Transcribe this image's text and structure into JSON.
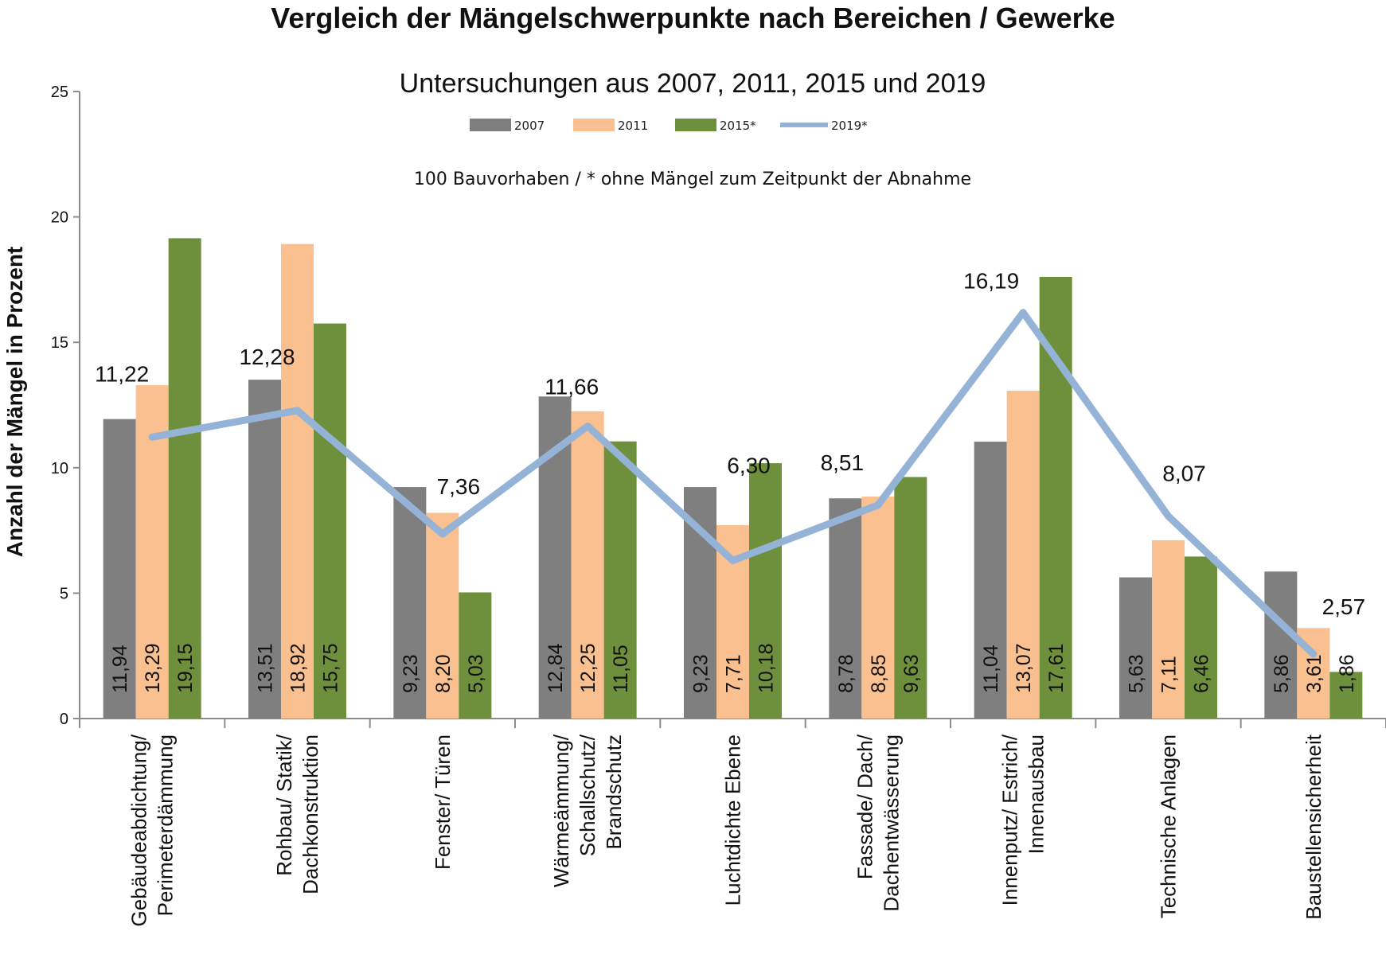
{
  "chart_data": {
    "type": "bar",
    "title": "Vergleich der Mängelschwerpunkte nach Bereichen / Gewerke",
    "subtitle": "Untersuchungen aus 2007, 2011, 2015 und 2019",
    "note": "100 Bauvorhaben / * ohne Mängel zum Zeitpunkt der Abnahme",
    "ylabel": "Anzahl der Mängel in Prozent",
    "xlabel": "",
    "ylim": [
      0,
      25
    ],
    "yticks": [
      "0",
      "5",
      "10",
      "15",
      "20",
      "25"
    ],
    "legend_position": "top",
    "categories": [
      [
        "Gebäudeabdichtung/",
        "Perimeterdämmung"
      ],
      [
        "Rohbau/ Statik/",
        "Dachkonstruktion"
      ],
      [
        "Fenster/ Türen"
      ],
      [
        "Wärmeämmung/",
        "Schallschutz/",
        "Brandschutz"
      ],
      [
        "Luchtdichte Ebene"
      ],
      [
        "Fassade/ Dach/",
        "Dachentwässerung"
      ],
      [
        "Innenputz/ Estrich/",
        "Innenausbau"
      ],
      [
        "Technische Anlagen"
      ],
      [
        "Baustellensicherheit"
      ]
    ],
    "series": [
      {
        "name": "2007",
        "kind": "bar",
        "color": "#7f7f7f",
        "values": [
          11.94,
          13.51,
          9.23,
          12.84,
          9.23,
          8.78,
          11.04,
          5.63,
          5.86
        ],
        "labels": [
          "11,94",
          "13,51",
          "9,23",
          "12,84",
          "9,23",
          "8,78",
          "11,04",
          "5,63",
          "5,86"
        ]
      },
      {
        "name": "2011",
        "kind": "bar",
        "color": "#fac090",
        "values": [
          13.29,
          18.92,
          8.2,
          12.25,
          7.71,
          8.85,
          13.07,
          7.11,
          3.61
        ],
        "labels": [
          "13,29",
          "18,92",
          "8,20",
          "12,25",
          "7,71",
          "8,85",
          "13,07",
          "7,11",
          "3,61"
        ]
      },
      {
        "name": "2015*",
        "kind": "bar",
        "color": "#6e8f3b",
        "values": [
          19.15,
          15.75,
          5.03,
          11.05,
          10.18,
          9.63,
          17.61,
          6.46,
          1.86
        ],
        "labels": [
          "19,15",
          "15,75",
          "5,03",
          "11,05",
          "10,18",
          "9,63",
          "17,61",
          "6,46",
          "1,86"
        ]
      },
      {
        "name": "2019*",
        "kind": "line",
        "color": "#95b3d7",
        "values": [
          11.22,
          12.28,
          7.36,
          11.66,
          6.3,
          8.51,
          16.19,
          8.07,
          2.57
        ],
        "labels": [
          "11,22",
          "12,28",
          "7,36",
          "11,66",
          "6,30",
          "8,51",
          "16,19",
          "8,07",
          "2,57"
        ]
      }
    ]
  }
}
